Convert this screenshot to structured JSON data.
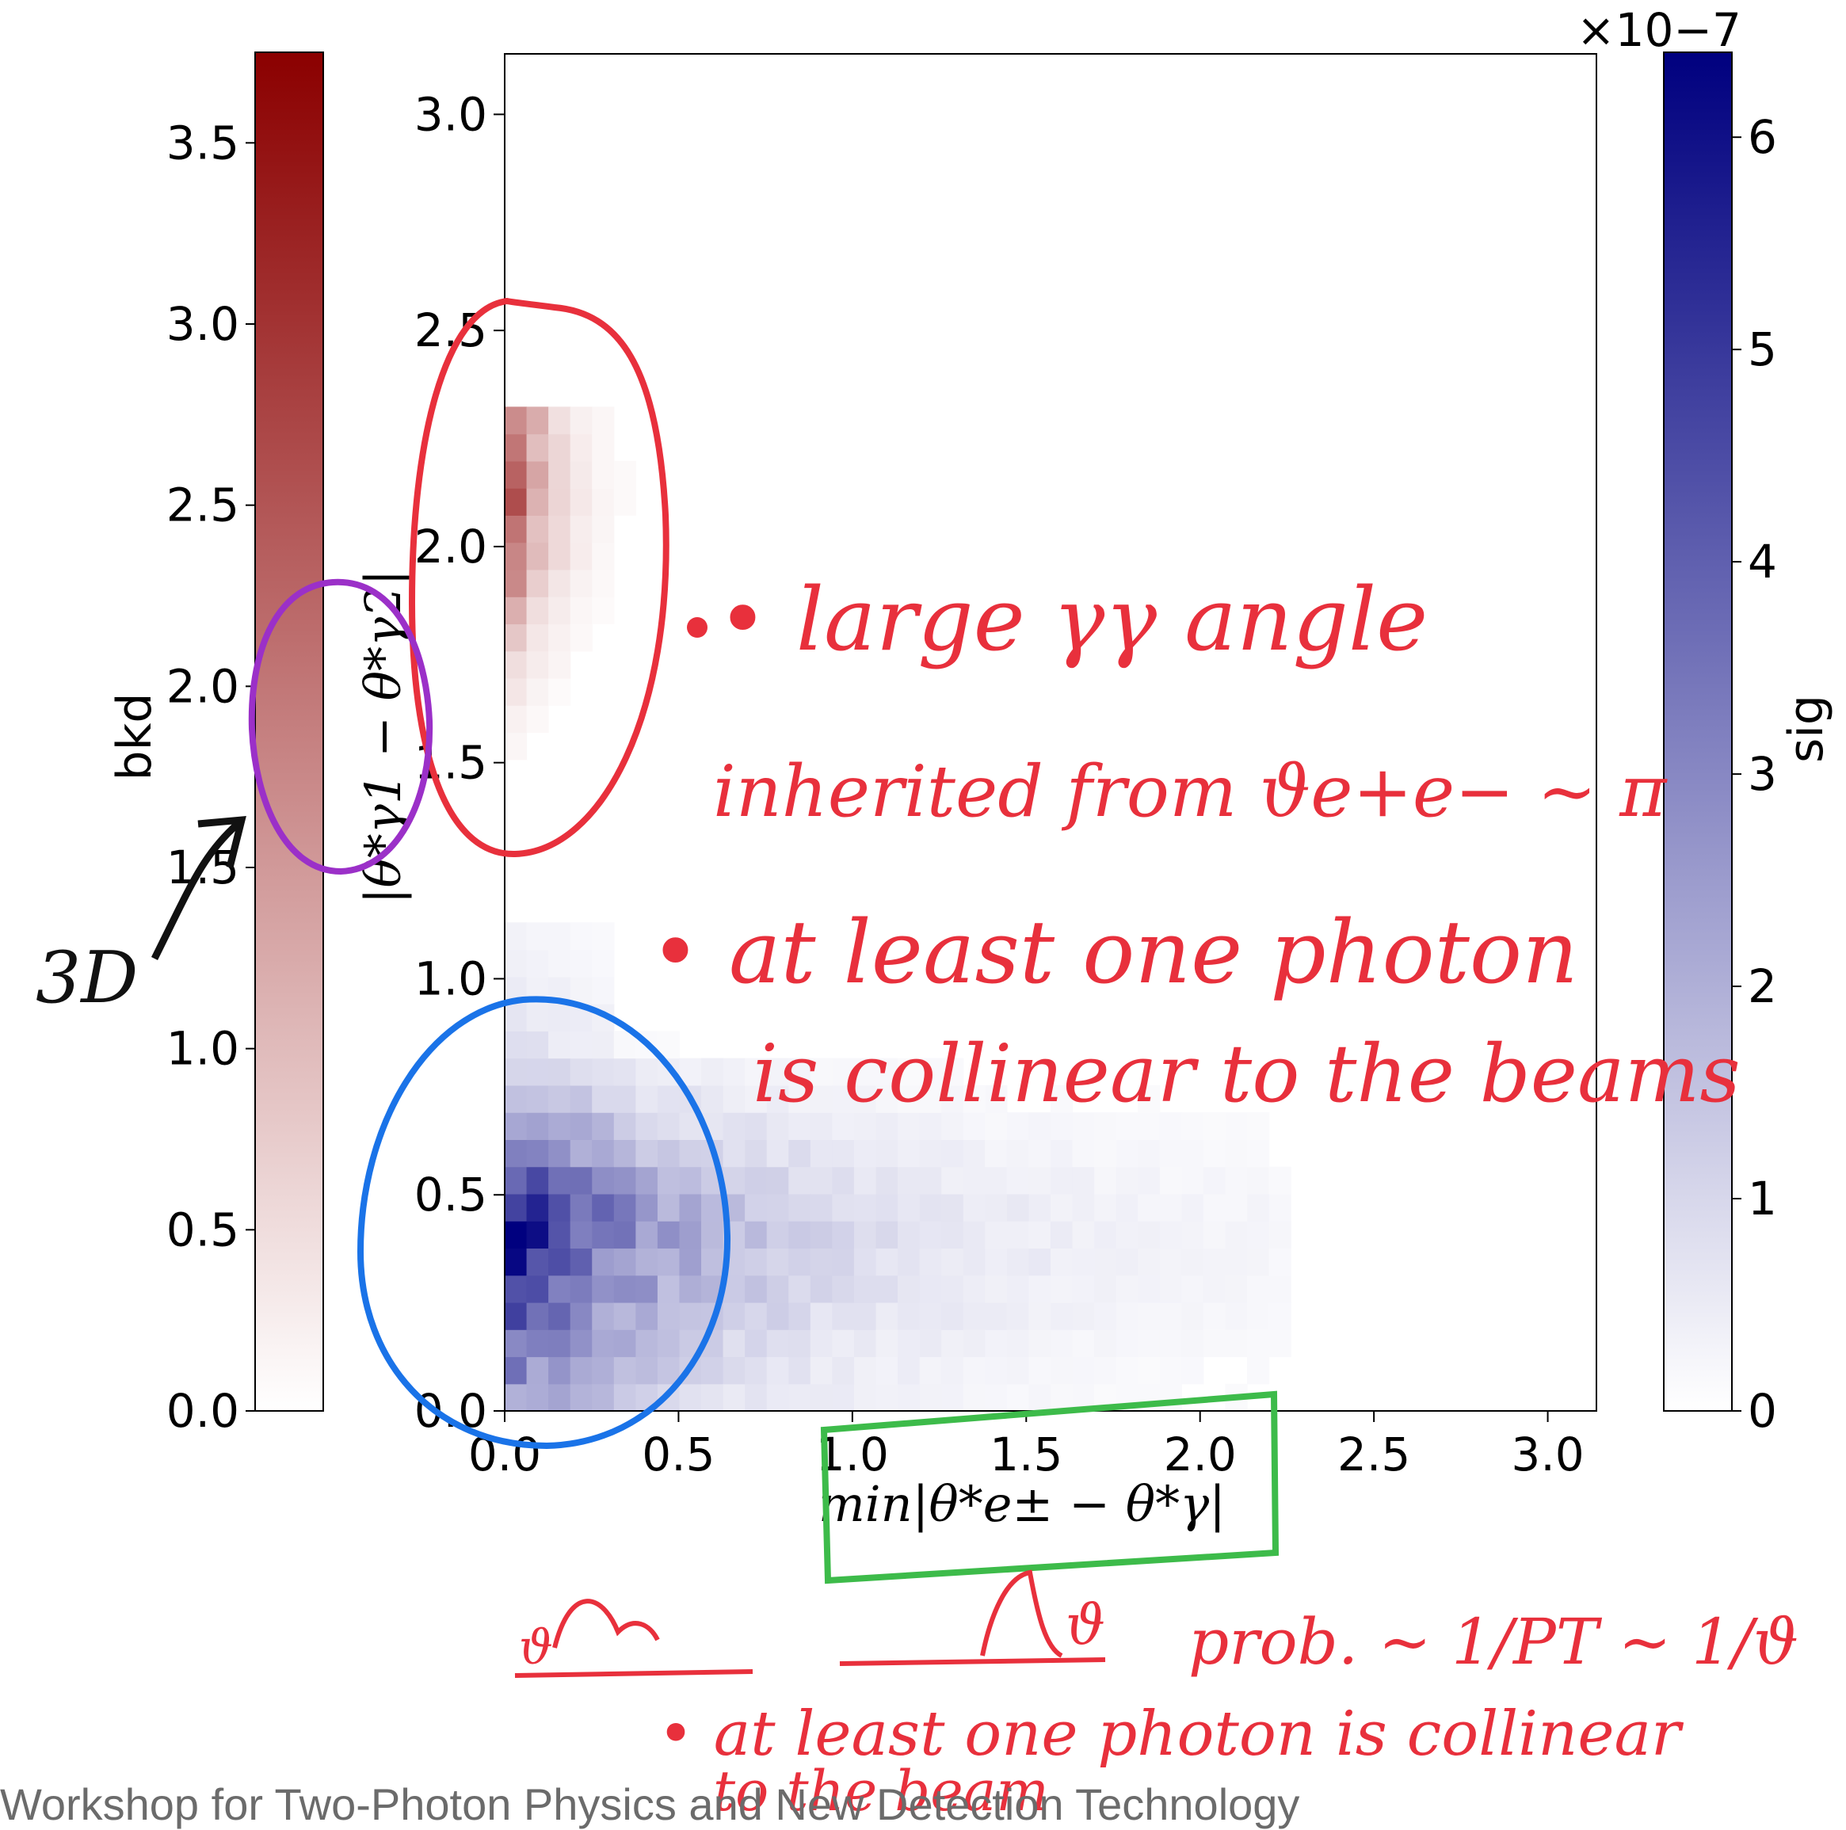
{
  "chart_data": {
    "type": "heatmap",
    "xlabel": "min|θ*e± − θ*γ|",
    "ylabel": "|θ*γ1 − θ*γ2|",
    "xlim": [
      0,
      3.14
    ],
    "ylim": [
      0,
      3.14
    ],
    "x_ticks": [
      "0.0",
      "0.5",
      "1.0",
      "1.5",
      "2.0",
      "2.5",
      "3.0"
    ],
    "y_ticks": [
      "0.0",
      "0.5",
      "1.0",
      "1.5",
      "2.0",
      "2.5",
      "3.0"
    ],
    "bins": 50,
    "colorbar_bkd": {
      "label": "bkd",
      "range": [
        0,
        3.75
      ],
      "ticks": [
        "0.0",
        "0.5",
        "1.0",
        "1.5",
        "2.0",
        "2.5",
        "3.0",
        "3.5"
      ],
      "color_low": "#ffffff",
      "color_high": "#8b0000"
    },
    "colorbar_sig": {
      "label": "sig",
      "range": [
        0,
        6.4
      ],
      "ticks": [
        "0",
        "1",
        "2",
        "3",
        "4",
        "5",
        "6"
      ],
      "multiplier": "×10−7",
      "color_low": "#ffffff",
      "color_high": "#00007f"
    },
    "bkd_region": {
      "x": [
        0.0,
        0.25
      ],
      "y": [
        1.5,
        2.35
      ],
      "peak_y": 2.2,
      "peak_value": 3.7
    },
    "sig_region": {
      "x": [
        0.0,
        2.2
      ],
      "y": [
        0.0,
        1.1
      ],
      "peak_x": 0.05,
      "peak_y": 0.4,
      "peak_value": 6.4
    }
  },
  "annotations": {
    "red_note_1_line1": "• large γγ angle",
    "red_note_1_line2": "inherited from ϑe+e− ~ π",
    "red_note_2_line1": "• at least one photon",
    "red_note_2_line2": "is collinear to the beams",
    "black_note": "3D",
    "bottom_left": "ϑ",
    "bottom_right": "ϑ",
    "bottom_formula": "prob. ~ 1/PT ~ 1/ϑ",
    "bottom_note_line1": "• at least one photon is collinear",
    "bottom_note_line2": "to the beam"
  },
  "annotation_colors": {
    "red": "#e8303c",
    "blue": "#1a73e8",
    "green": "#3dbb4a",
    "purple": "#9b30c8",
    "black": "#111111"
  },
  "footer_text": "Workshop for Two-Photon Physics and New Detection Technology"
}
